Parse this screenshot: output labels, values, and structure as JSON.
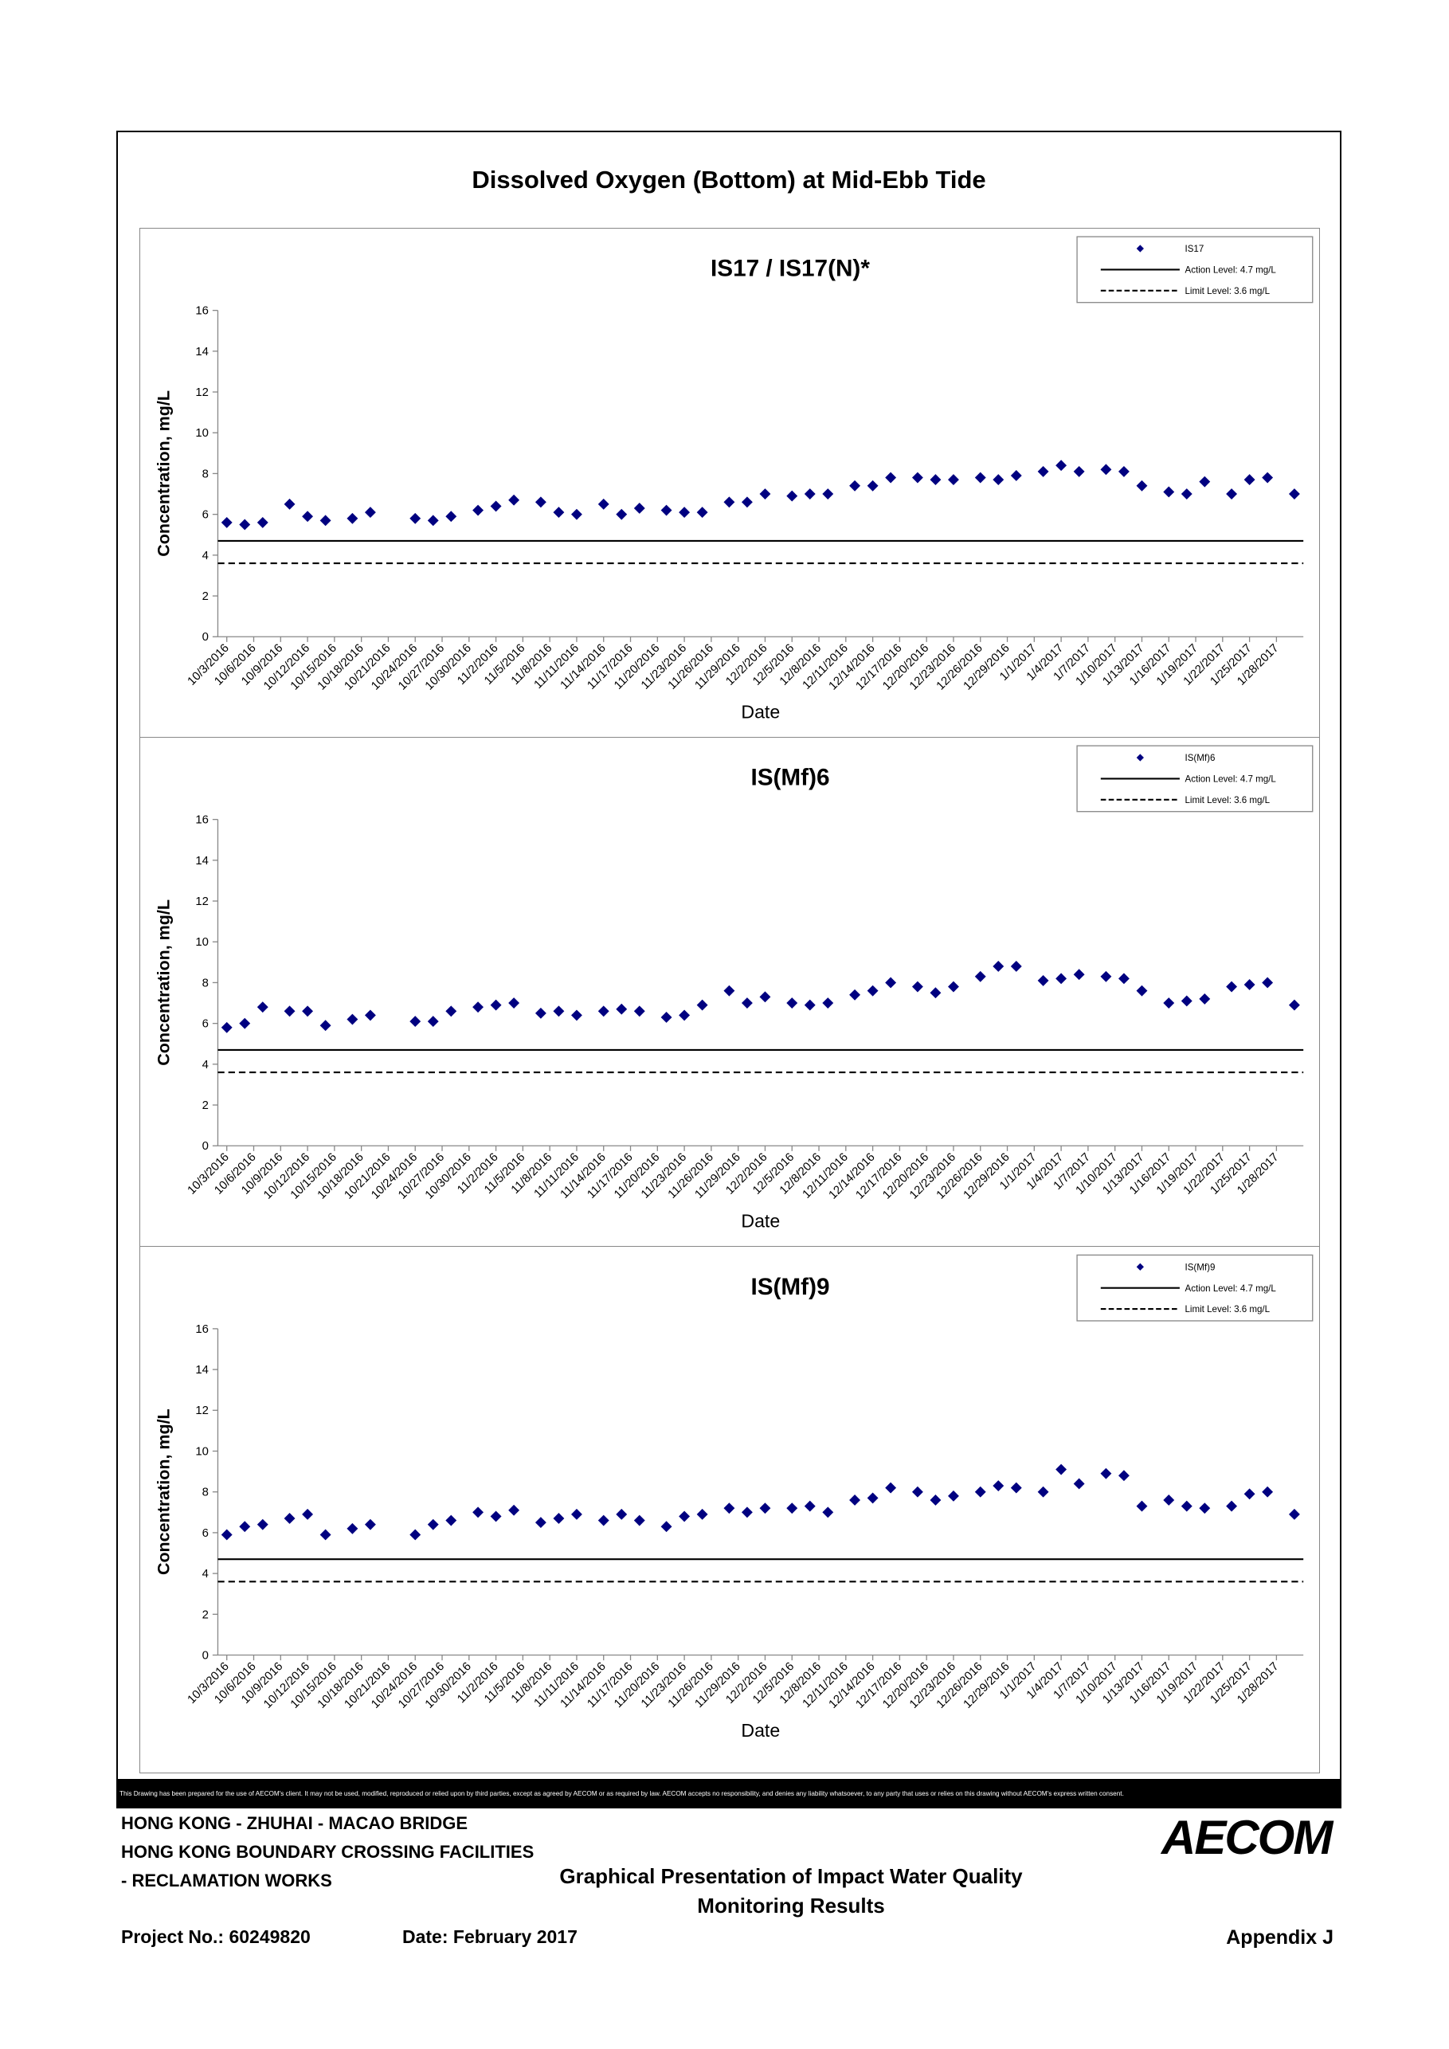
{
  "title": "Dissolved Oxygen (Bottom) at Mid-Ebb Tide",
  "chart_data": [
    {
      "type": "scatter",
      "title": "IS17 / IS17(N)*",
      "x_label": "Date",
      "y_label": "Concentration, mg/L",
      "x": [
        "10/3/2016",
        "10/5/2016",
        "10/7/2016",
        "10/10/2016",
        "10/12/2016",
        "10/14/2016",
        "10/17/2016",
        "10/19/2016",
        "10/24/2016",
        "10/26/2016",
        "10/28/2016",
        "10/31/2016",
        "11/2/2016",
        "11/4/2016",
        "11/7/2016",
        "11/9/2016",
        "11/11/2016",
        "11/14/2016",
        "11/16/2016",
        "11/18/2016",
        "11/21/2016",
        "11/23/2016",
        "11/25/2016",
        "11/28/2016",
        "11/30/2016",
        "12/2/2016",
        "12/5/2016",
        "12/7/2016",
        "12/9/2016",
        "12/12/2016",
        "12/14/2016",
        "12/16/2016",
        "12/19/2016",
        "12/21/2016",
        "12/23/2016",
        "12/26/2016",
        "12/28/2016",
        "12/30/2016",
        "1/2/2017",
        "1/4/2017",
        "1/6/2017",
        "1/9/2017",
        "1/11/2017",
        "1/13/2017",
        "1/16/2017",
        "1/18/2017",
        "1/20/2017",
        "1/23/2017",
        "1/25/2017",
        "1/27/2017",
        "1/30/2017"
      ],
      "series": [
        {
          "name": "IS17",
          "color": "#000080",
          "values": [
            5.6,
            5.5,
            5.6,
            6.5,
            5.9,
            5.7,
            5.8,
            6.1,
            5.8,
            5.7,
            5.9,
            6.2,
            6.4,
            6.7,
            6.6,
            6.1,
            6.0,
            6.5,
            6.0,
            6.3,
            6.2,
            6.1,
            6.1,
            6.6,
            6.6,
            7.0,
            6.9,
            7.0,
            7.0,
            7.4,
            7.4,
            7.8,
            7.8,
            7.7,
            7.7,
            7.8,
            7.7,
            7.9,
            8.1,
            8.4,
            8.1,
            8.2,
            8.1,
            7.4,
            7.1,
            7.0,
            7.6,
            7.0,
            7.7,
            7.8,
            7.0
          ]
        }
      ],
      "hlines": [
        {
          "name": "Action Level: 4.7 mg/L",
          "value": 4.7,
          "style": "solid",
          "color": "#000000"
        },
        {
          "name": "Limit Level: 3.6 mg/L",
          "value": 3.6,
          "style": "dashed",
          "color": "#000000"
        }
      ],
      "xlim": [
        "10/2/2016",
        "1/31/2017"
      ],
      "xticks": [
        "10/3/2016",
        "10/6/2016",
        "10/9/2016",
        "10/12/2016",
        "10/15/2016",
        "10/18/2016",
        "10/21/2016",
        "10/24/2016",
        "10/27/2016",
        "10/30/2016",
        "11/2/2016",
        "11/5/2016",
        "11/8/2016",
        "11/11/2016",
        "11/14/2016",
        "11/17/2016",
        "11/20/2016",
        "11/23/2016",
        "11/26/2016",
        "11/29/2016",
        "12/2/2016",
        "12/5/2016",
        "12/8/2016",
        "12/11/2016",
        "12/14/2016",
        "12/17/2016",
        "12/20/2016",
        "12/23/2016",
        "12/26/2016",
        "12/29/2016",
        "1/1/2017",
        "1/4/2017",
        "1/7/2017",
        "1/10/2017",
        "1/13/2017",
        "1/16/2017",
        "1/19/2017",
        "1/22/2017",
        "1/25/2017",
        "1/28/2017"
      ],
      "ylim": [
        0,
        16
      ],
      "yticks": [
        0,
        2,
        4,
        6,
        8,
        10,
        12,
        14,
        16
      ],
      "legend": "upper right"
    },
    {
      "type": "scatter",
      "title": "IS(Mf)6",
      "x_label": "Date",
      "y_label": "Concentration, mg/L",
      "x": [
        "10/3/2016",
        "10/5/2016",
        "10/7/2016",
        "10/10/2016",
        "10/12/2016",
        "10/14/2016",
        "10/17/2016",
        "10/19/2016",
        "10/24/2016",
        "10/26/2016",
        "10/28/2016",
        "10/31/2016",
        "11/2/2016",
        "11/4/2016",
        "11/7/2016",
        "11/9/2016",
        "11/11/2016",
        "11/14/2016",
        "11/16/2016",
        "11/18/2016",
        "11/21/2016",
        "11/23/2016",
        "11/25/2016",
        "11/28/2016",
        "11/30/2016",
        "12/2/2016",
        "12/5/2016",
        "12/7/2016",
        "12/9/2016",
        "12/12/2016",
        "12/14/2016",
        "12/16/2016",
        "12/19/2016",
        "12/21/2016",
        "12/23/2016",
        "12/26/2016",
        "12/28/2016",
        "12/30/2016",
        "1/2/2017",
        "1/4/2017",
        "1/6/2017",
        "1/9/2017",
        "1/11/2017",
        "1/13/2017",
        "1/16/2017",
        "1/18/2017",
        "1/20/2017",
        "1/23/2017",
        "1/25/2017",
        "1/27/2017",
        "1/30/2017"
      ],
      "series": [
        {
          "name": "IS(Mf)6",
          "color": "#000080",
          "values": [
            5.8,
            6.0,
            6.8,
            6.6,
            6.6,
            5.9,
            6.2,
            6.4,
            6.1,
            6.1,
            6.6,
            6.8,
            6.9,
            7.0,
            6.5,
            6.6,
            6.4,
            6.6,
            6.7,
            6.6,
            6.3,
            6.4,
            6.9,
            7.6,
            7.0,
            7.3,
            7.0,
            6.9,
            7.0,
            7.4,
            7.6,
            8.0,
            7.8,
            7.5,
            7.8,
            8.3,
            8.8,
            8.8,
            8.1,
            8.2,
            8.4,
            8.3,
            8.2,
            7.6,
            7.0,
            7.1,
            7.2,
            7.8,
            7.9,
            8.0,
            6.9
          ]
        }
      ],
      "hlines": [
        {
          "name": "Action Level: 4.7 mg/L",
          "value": 4.7,
          "style": "solid",
          "color": "#000000"
        },
        {
          "name": "Limit Level: 3.6 mg/L",
          "value": 3.6,
          "style": "dashed",
          "color": "#000000"
        }
      ],
      "xlim": [
        "10/2/2016",
        "1/31/2017"
      ],
      "xticks": [
        "10/3/2016",
        "10/6/2016",
        "10/9/2016",
        "10/12/2016",
        "10/15/2016",
        "10/18/2016",
        "10/21/2016",
        "10/24/2016",
        "10/27/2016",
        "10/30/2016",
        "11/2/2016",
        "11/5/2016",
        "11/8/2016",
        "11/11/2016",
        "11/14/2016",
        "11/17/2016",
        "11/20/2016",
        "11/23/2016",
        "11/26/2016",
        "11/29/2016",
        "12/2/2016",
        "12/5/2016",
        "12/8/2016",
        "12/11/2016",
        "12/14/2016",
        "12/17/2016",
        "12/20/2016",
        "12/23/2016",
        "12/26/2016",
        "12/29/2016",
        "1/1/2017",
        "1/4/2017",
        "1/7/2017",
        "1/10/2017",
        "1/13/2017",
        "1/16/2017",
        "1/19/2017",
        "1/22/2017",
        "1/25/2017",
        "1/28/2017"
      ],
      "ylim": [
        0,
        16
      ],
      "yticks": [
        0,
        2,
        4,
        6,
        8,
        10,
        12,
        14,
        16
      ],
      "legend": "upper right"
    },
    {
      "type": "scatter",
      "title": "IS(Mf)9",
      "x_label": "Date",
      "y_label": "Concentration, mg/L",
      "x": [
        "10/3/2016",
        "10/5/2016",
        "10/7/2016",
        "10/10/2016",
        "10/12/2016",
        "10/14/2016",
        "10/17/2016",
        "10/19/2016",
        "10/24/2016",
        "10/26/2016",
        "10/28/2016",
        "10/31/2016",
        "11/2/2016",
        "11/4/2016",
        "11/7/2016",
        "11/9/2016",
        "11/11/2016",
        "11/14/2016",
        "11/16/2016",
        "11/18/2016",
        "11/21/2016",
        "11/23/2016",
        "11/25/2016",
        "11/28/2016",
        "11/30/2016",
        "12/2/2016",
        "12/5/2016",
        "12/7/2016",
        "12/9/2016",
        "12/12/2016",
        "12/14/2016",
        "12/16/2016",
        "12/19/2016",
        "12/21/2016",
        "12/23/2016",
        "12/26/2016",
        "12/28/2016",
        "12/30/2016",
        "1/2/2017",
        "1/4/2017",
        "1/6/2017",
        "1/9/2017",
        "1/11/2017",
        "1/13/2017",
        "1/16/2017",
        "1/18/2017",
        "1/20/2017",
        "1/23/2017",
        "1/25/2017",
        "1/27/2017",
        "1/30/2017"
      ],
      "series": [
        {
          "name": "IS(Mf)9",
          "color": "#000080",
          "values": [
            5.9,
            6.3,
            6.4,
            6.7,
            6.9,
            5.9,
            6.2,
            6.4,
            5.9,
            6.4,
            6.6,
            7.0,
            6.8,
            7.1,
            6.5,
            6.7,
            6.9,
            6.6,
            6.9,
            6.6,
            6.3,
            6.8,
            6.9,
            7.2,
            7.0,
            7.2,
            7.2,
            7.3,
            7.0,
            7.6,
            7.7,
            8.2,
            8.0,
            7.6,
            7.8,
            8.0,
            8.3,
            8.2,
            8.0,
            9.1,
            8.4,
            8.9,
            8.8,
            7.3,
            7.6,
            7.3,
            7.2,
            7.3,
            7.9,
            8.0,
            6.9
          ]
        }
      ],
      "hlines": [
        {
          "name": "Action Level: 4.7 mg/L",
          "value": 4.7,
          "style": "solid",
          "color": "#000000"
        },
        {
          "name": "Limit Level: 3.6 mg/L",
          "value": 3.6,
          "style": "dashed",
          "color": "#000000"
        }
      ],
      "xlim": [
        "10/2/2016",
        "1/31/2017"
      ],
      "xticks": [
        "10/3/2016",
        "10/6/2016",
        "10/9/2016",
        "10/12/2016",
        "10/15/2016",
        "10/18/2016",
        "10/21/2016",
        "10/24/2016",
        "10/27/2016",
        "10/30/2016",
        "11/2/2016",
        "11/5/2016",
        "11/8/2016",
        "11/11/2016",
        "11/14/2016",
        "11/17/2016",
        "11/20/2016",
        "11/23/2016",
        "11/26/2016",
        "11/29/2016",
        "12/2/2016",
        "12/5/2016",
        "12/8/2016",
        "12/11/2016",
        "12/14/2016",
        "12/17/2016",
        "12/20/2016",
        "12/23/2016",
        "12/26/2016",
        "12/29/2016",
        "1/1/2017",
        "1/4/2017",
        "1/7/2017",
        "1/10/2017",
        "1/13/2017",
        "1/16/2017",
        "1/19/2017",
        "1/22/2017",
        "1/25/2017",
        "1/28/2017"
      ],
      "ylim": [
        0,
        16
      ],
      "yticks": [
        0,
        2,
        4,
        6,
        8,
        10,
        12,
        14,
        16
      ],
      "legend": "upper right"
    }
  ],
  "disclaimer": "This Drawing has been prepared for the use of AECOM's client. It may not be used, modified, reproduced or relied upon by third parties, except as agreed by AECOM or as required by law. AECOM accepts no responsibility, and denies any liability whatsoever, to any party that uses or relies on this drawing without AECOM's express written consent.",
  "footer": {
    "project_lines": [
      "HONG KONG - ZHUHAI - MACAO BRIDGE",
      "HONG KONG BOUNDARY CROSSING FACILITIES",
      "- RECLAMATION WORKS"
    ],
    "heading_lines": [
      "Graphical Presentation of Impact Water Quality",
      "Monitoring Results"
    ],
    "project_no": "Project No.: 60249820",
    "date": "Date: February 2017",
    "appendix": "Appendix J",
    "logo": "AECOM"
  }
}
